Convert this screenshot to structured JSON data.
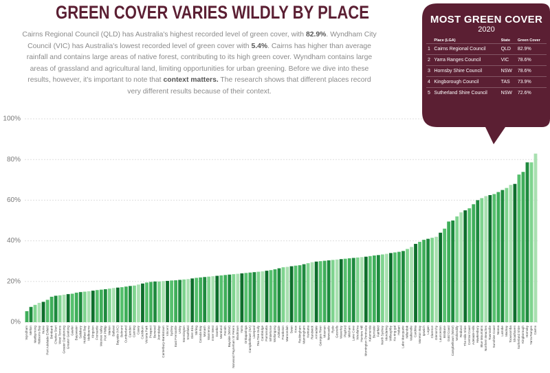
{
  "header": {
    "title": "GREEN COVER VARIES WILDLY BY PLACE",
    "intro": [
      "Cairns Regional Council (QLD) has Australia's highest recorded level of green cover, with ",
      "82.9%",
      ". Wyndham City Council (VIC) has Australia's lowest recorded level of green cover with ",
      "5.4%",
      ". Cairns has higher than average rainfall and contains large areas of native forest, contributing to its high green cover. Wyndham contains large areas of grassland and agricultural land, limiting opportunities for urban greening. Before we dive into these results, however, it's important to note that ",
      "context matters.",
      " The research shows that different places record very different results because of their context."
    ]
  },
  "top_box": {
    "title": "MOST GREEN COVER",
    "year": "2020",
    "columns": [
      "Place (LGA)",
      "State",
      "Green Cover"
    ],
    "rows": [
      [
        "1",
        "Cairns Regional Council",
        "QLD",
        "82.9%"
      ],
      [
        "2",
        "Yarra Ranges Council",
        "VIC",
        "78.6%"
      ],
      [
        "3",
        "Hornsby Shire Council",
        "NSW",
        "78.6%"
      ],
      [
        "4",
        "Kingborough Council",
        "TAS",
        "73.9%"
      ],
      [
        "5",
        "Sutherland Shire Council",
        "NSW",
        "72.6%"
      ]
    ]
  },
  "chart_data": {
    "type": "bar",
    "categories": [
      "Wyndham",
      "Melton",
      "Maribyrnong",
      "Hobsons Bay",
      "Hume",
      "Port Adelaide Enfield",
      "Brimbank",
      "Charles Sturt",
      "West Torrens",
      "Greater Dandenong",
      "Greater Geelong",
      "Gawler",
      "Bayswater",
      "Salisbury",
      "Holdfast Bay",
      "Melbourne",
      "Kingston",
      "Fremantle",
      "Moonee Valley",
      "Port Phillip",
      "Marion",
      "Ballarat",
      "Bayside (VIC)",
      "Belmont",
      "Cumberland",
      "Camden",
      "Canning",
      "Casey",
      "Cockburn",
      "Victoria Park",
      "Prospect",
      "Burwood",
      "Joondalup",
      "Canterbury-Bankstown",
      "Vincent",
      "Sydney",
      "East Fremantle",
      "Unley",
      "Stonnington",
      "Strathfield",
      "Glen Eira",
      "Stirling",
      "Canada Bay",
      "Monash",
      "Wanneroo",
      "Inner West",
      "Darebin",
      "Moreland",
      "Penrith",
      "Bayside (NSW)",
      "Norwood Payneham St Peters",
      "Blacktown",
      "Yarra",
      "Onkaparinga",
      "Campbelltown (SA)",
      "Liverpool",
      "Tea Tree Gully",
      "Cambridge",
      "Parramatta",
      "Whitehorse",
      "Wollongong",
      "Adelaide",
      "Frankston",
      "Maroondah",
      "Swan",
      "Knox",
      "Rockingham",
      "Manningham",
      "Kwinana",
      "Randwick",
      "Armadale",
      "Georges River",
      "Mosman",
      "Newcastle",
      "Ryde",
      "Gosnells",
      "Waverley",
      "Playford",
      "Mitcham",
      "Lane Cove",
      "Woollahra",
      "Hunters Hill",
      "Mornington Peninsula",
      "Kalamunda",
      "Burnside",
      "Fairfield",
      "North Sydney",
      "Mundaring",
      "Willoughby",
      "Ku-ring-gai",
      "Hobart",
      "Lake Macquarie",
      "Nillumbik",
      "Walkerville",
      "Cardinia",
      "Moreton Bay",
      "Ipswich",
      "Logan",
      "Clarence",
      "Glenorchy",
      "Launceston",
      "Brisbane",
      "Gold Coast",
      "Campbelltown (NSW)",
      "Wollondilly",
      "Redland",
      "The Hills Shire",
      "Central Coast",
      "Adelaide Hills",
      "Hawkesbury",
      "Blue Mountains",
      "Northern Beaches",
      "Townsville",
      "Sunshine Coast",
      "Noosa",
      "Latrobe",
      "Mackay",
      "Toowoomba",
      "Shoalhaven",
      "Sutherland Shire",
      "Kingborough",
      "Hornsby",
      "Yarra Ranges",
      "Cairns"
    ],
    "values": [
      5.4,
      7.5,
      8.5,
      9.5,
      10,
      11,
      12.5,
      13,
      13.2,
      13.5,
      13.8,
      14,
      14.5,
      14.8,
      15,
      15.2,
      15.5,
      15.8,
      16,
      16.2,
      16.5,
      16.8,
      17,
      17.2,
      17.5,
      17.8,
      18,
      18.5,
      19,
      19.5,
      19.8,
      20,
      20,
      20.2,
      20.3,
      20.5,
      20.6,
      20.8,
      21,
      21.2,
      21.5,
      21.8,
      22,
      22.2,
      22.4,
      22.6,
      22.8,
      23,
      23.2,
      23.4,
      23.6,
      23.8,
      24,
      24.2,
      24.4,
      24.6,
      24.8,
      25,
      25.3,
      25.6,
      26,
      26.5,
      27,
      27.2,
      27.5,
      27.8,
      28,
      28.5,
      29,
      29.5,
      29.8,
      30,
      30.2,
      30.4,
      30.6,
      30.8,
      31,
      31.2,
      31.4,
      31.6,
      31.8,
      32,
      32.2,
      32.5,
      32.8,
      33,
      33.3,
      33.6,
      34,
      34.3,
      34.6,
      35,
      36,
      37,
      38.5,
      39.5,
      40.5,
      41,
      41.5,
      42,
      44,
      46,
      49.5,
      50,
      52,
      54,
      55,
      56,
      58,
      60,
      61,
      62,
      62.5,
      63,
      64,
      65,
      66,
      67.5,
      68,
      72.6,
      73.9,
      78.6,
      78.6,
      82.9
    ],
    "palette": [
      "#3fae5a",
      "#1e8a3e",
      "#7fd48f",
      "#a8e0b0",
      "#0e6e2c",
      "#56c06e"
    ],
    "ylim": [
      0,
      100
    ],
    "yticks": [
      {
        "value": 0,
        "label": "0%"
      },
      {
        "value": 20,
        "label": "20%"
      },
      {
        "value": 40,
        "label": "40%"
      },
      {
        "value": 60,
        "label": "60%"
      },
      {
        "value": 80,
        "label": "80%"
      },
      {
        "value": 100,
        "label": "100%"
      }
    ],
    "grid": true
  }
}
